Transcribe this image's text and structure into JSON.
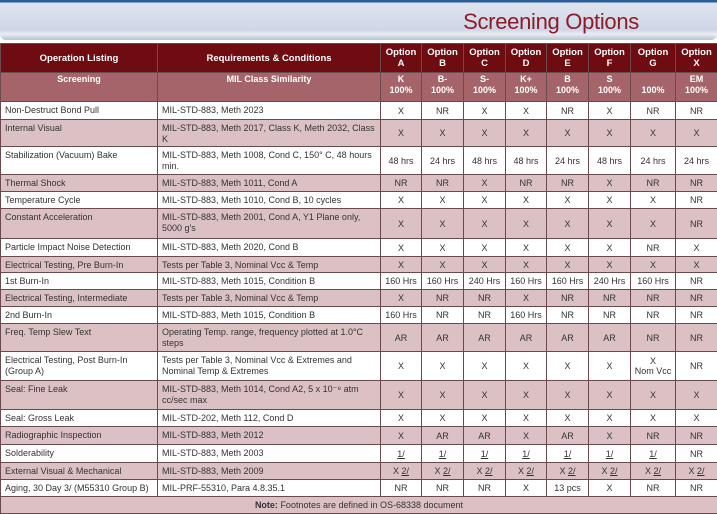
{
  "title": "Screening Options",
  "header": {
    "operation": "Operation Listing",
    "requirements": "Requirements & Conditions",
    "options": [
      {
        "l1": "Option",
        "l2": "A"
      },
      {
        "l1": "Option",
        "l2": "B"
      },
      {
        "l1": "Option",
        "l2": "C"
      },
      {
        "l1": "Option",
        "l2": "D"
      },
      {
        "l1": "Option",
        "l2": "E"
      },
      {
        "l1": "Option",
        "l2": "F"
      },
      {
        "l1": "Option",
        "l2": "G"
      },
      {
        "l1": "Option",
        "l2": "X"
      }
    ]
  },
  "subheader": {
    "operation": "Screening",
    "requirements": "MIL Class Similarity",
    "classes": [
      {
        "c": "K",
        "p": "100%"
      },
      {
        "c": "B-",
        "p": "100%"
      },
      {
        "c": "S-",
        "p": "100%"
      },
      {
        "c": "K+",
        "p": "100%"
      },
      {
        "c": "B",
        "p": "100%"
      },
      {
        "c": "S",
        "p": "100%"
      },
      {
        "c": "",
        "p": "100%"
      },
      {
        "c": "EM",
        "p": "100%"
      }
    ]
  },
  "rows": [
    {
      "op": "Non-Destruct Bond Pull",
      "req": "MIL-STD-883, Meth 2023",
      "v": [
        "X",
        "NR",
        "X",
        "X",
        "NR",
        "X",
        "NR",
        "NR"
      ]
    },
    {
      "op": "Internal Visual",
      "req": "MIL-STD-883, Meth 2017, Class K,  Meth 2032, Class K",
      "v": [
        "X",
        "X",
        "X",
        "X",
        "X",
        "X",
        "X",
        "X"
      ]
    },
    {
      "op": "Stabilization (Vacuum) Bake",
      "req": "MIL-STD-883, Meth 1008, Cond C,  150° C, 48 hours min.",
      "v": [
        "48 hrs",
        "24 hrs",
        "48 hrs",
        "48 hrs",
        "24 hrs",
        "48 hrs",
        "24 hrs",
        "24 hrs"
      ]
    },
    {
      "op": "Thermal Shock",
      "req": "MIL-STD-883, Meth 1011, Cond A",
      "v": [
        "NR",
        "NR",
        "X",
        "NR",
        "NR",
        "X",
        "NR",
        "NR"
      ]
    },
    {
      "op": "Temperature Cycle",
      "req": "MIL-STD-883, Meth 1010, Cond B, 10 cycles",
      "v": [
        "X",
        "X",
        "X",
        "X",
        "X",
        "X",
        "X",
        "NR"
      ]
    },
    {
      "op": "Constant Acceleration",
      "req": "MIL-STD-883, Meth 2001, Cond A, Y1 Plane only, 5000 g's",
      "v": [
        "X",
        "X",
        "X",
        "X",
        "X",
        "X",
        "X",
        "NR"
      ]
    },
    {
      "op": "Particle Impact Noise Detection",
      "req": "MIL-STD-883, Meth 2020, Cond B",
      "v": [
        "X",
        "X",
        "X",
        "X",
        "X",
        "X",
        "NR",
        "X"
      ]
    },
    {
      "op": "Electrical Testing, Pre Burn-In",
      "req": "Tests per Table 3, Nominal  Vcc & Temp",
      "v": [
        "X",
        "X",
        "X",
        "X",
        "X",
        "X",
        "X",
        "X"
      ]
    },
    {
      "op": "1st Burn-In",
      "req": "MIL-STD-883, Meth 1015, Condition B",
      "v": [
        "160 Hrs",
        "160 Hrs",
        "240 Hrs",
        "160 Hrs",
        "160 Hrs",
        "240 Hrs",
        "160 Hrs",
        "NR"
      ]
    },
    {
      "op": "Electrical Testing, Intermediate",
      "req": "Tests per Table 3, Nominal  Vcc & Temp",
      "v": [
        "X",
        "NR",
        "NR",
        "X",
        "NR",
        "NR",
        "NR",
        "NR"
      ]
    },
    {
      "op": "2nd Burn-In",
      "req": "MIL-STD-883, Meth 1015, Condition B",
      "v": [
        "160 Hrs",
        "NR",
        "NR",
        "160 Hrs",
        "NR",
        "NR",
        "NR",
        "NR"
      ]
    },
    {
      "op": "Freq. Temp Slew Text",
      "req": "Operating Temp. range, frequency plotted at 1.0°C steps",
      "v": [
        "AR",
        "AR",
        "AR",
        "AR",
        "AR",
        "AR",
        "NR",
        "NR"
      ]
    },
    {
      "op": "Electrical Testing, Post Burn-In (Group A)",
      "req": "Tests per Table 3, Nominal Vcc & Extremes and Nominal Temp & Extremes",
      "v": [
        "X",
        "X",
        "X",
        "X",
        "X",
        "X",
        "X Nom Vcc",
        "NR"
      ]
    },
    {
      "op": "Seal: Fine Leak",
      "req": "MIL-STD-883, Meth 1014, Cond A2, 5 x 10⁻⁸ atm cc/sec max",
      "v": [
        "X",
        "X",
        "X",
        "X",
        "X",
        "X",
        "X",
        "X"
      ]
    },
    {
      "op": "Seal: Gross Leak",
      "req": "MIL-STD-202, Meth 112, Cond D",
      "v": [
        "X",
        "X",
        "X",
        "X",
        "X",
        "X",
        "X",
        "X"
      ]
    },
    {
      "op": "Radiographic Inspection",
      "req": "MIL-STD-883, Meth 2012",
      "v": [
        "X",
        "AR",
        "AR",
        "X",
        "AR",
        "X",
        "NR",
        "NR"
      ]
    },
    {
      "op": "Solderability",
      "req": "MIL-STD-883, Meth 2003",
      "v": [
        "1/",
        "1/",
        "1/",
        "1/",
        "1/",
        "1/",
        "1/",
        "NR"
      ]
    },
    {
      "op": "External Visual & Mechanical",
      "req": "MIL-STD-883, Meth 2009",
      "v": [
        "X 2/",
        "X 2/",
        "X 2/",
        "X 2/",
        "X 2/",
        "X 2/",
        "X 2/",
        "X 2/"
      ]
    },
    {
      "op": "Aging, 30 Day 3/ (M55310 Group B)",
      "req": "MIL-PRF-55310, Para 4.8.35.1",
      "v": [
        "NR",
        "NR",
        "NR",
        "X",
        "13 pcs",
        "X",
        "NR",
        "NR"
      ]
    }
  ],
  "note": {
    "label": "Note:",
    "text": " Footnotes are defined in OS-68338 document"
  },
  "colors": {
    "header": "#6e0c12",
    "subheader": "#a4646a",
    "stripe": "#dcc1c4",
    "title": "#8c1c28"
  }
}
